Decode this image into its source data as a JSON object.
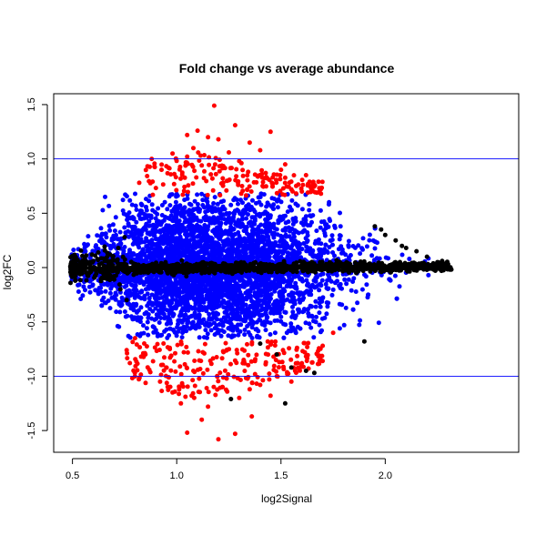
{
  "chart_data": {
    "type": "scatter",
    "title": "Fold change vs average abundance",
    "xlabel": "log2Signal",
    "ylabel": "log2FC",
    "xlim": [
      0.41,
      2.64
    ],
    "ylim": [
      -1.7,
      1.6
    ],
    "xticks": [
      "0.5",
      "1.0",
      "1.5",
      "2.0"
    ],
    "xtick_values": [
      0.5,
      1.0,
      1.5,
      2.0
    ],
    "yticks": [
      "-1.5",
      "-1.0",
      "-0.5",
      "0.0",
      "0.5",
      "1.0",
      "1.5"
    ],
    "ytick_values": [
      -1.5,
      -1.0,
      -0.5,
      0.0,
      0.5,
      1.0,
      1.5
    ],
    "hlines": [
      1.0,
      -1.0
    ],
    "hline_color": "#0000ff",
    "colors": {
      "upper": "#ff0000",
      "lower": "#ff0000",
      "mid": "#0000ff",
      "core": "#000000"
    },
    "grid": false,
    "series_points": {
      "core": [
        [
          0.49,
          0.01
        ],
        [
          0.52,
          0.03
        ],
        [
          0.55,
          -0.02
        ],
        [
          0.58,
          0.05
        ],
        [
          0.62,
          0.08
        ],
        [
          0.65,
          -0.06
        ],
        [
          0.68,
          0.12
        ],
        [
          0.7,
          -0.11
        ],
        [
          0.72,
          0.18
        ],
        [
          0.73,
          -0.2
        ],
        [
          0.75,
          0.28
        ],
        [
          0.76,
          -0.3
        ],
        [
          0.8,
          0.02
        ],
        [
          0.9,
          -0.01
        ],
        [
          1.0,
          0.0
        ],
        [
          1.1,
          0.01
        ],
        [
          1.2,
          -0.02
        ],
        [
          1.3,
          0.01
        ],
        [
          1.4,
          0.0
        ],
        [
          1.5,
          -0.01
        ],
        [
          1.6,
          0.01
        ],
        [
          1.7,
          0.02
        ],
        [
          1.8,
          -0.01
        ],
        [
          1.9,
          0.0
        ],
        [
          1.95,
          0.38
        ],
        [
          1.98,
          0.35
        ],
        [
          2.0,
          0.3
        ],
        [
          2.05,
          0.25
        ],
        [
          2.08,
          0.2
        ],
        [
          2.1,
          0.18
        ],
        [
          2.15,
          0.15
        ],
        [
          2.2,
          0.1
        ],
        [
          2.25,
          0.05
        ],
        [
          2.28,
          0.02
        ],
        [
          2.3,
          0.01
        ],
        [
          2.27,
          -0.03
        ],
        [
          1.4,
          -0.7
        ],
        [
          1.48,
          -0.8
        ],
        [
          1.55,
          -0.92
        ],
        [
          1.62,
          -0.95
        ],
        [
          1.66,
          -0.97
        ],
        [
          1.9,
          -0.68
        ],
        [
          1.26,
          -1.21
        ],
        [
          1.52,
          -1.25
        ],
        [
          0.56,
          0.02
        ],
        [
          0.6,
          0.06
        ]
      ],
      "upper": [
        [
          1.05,
          1.22
        ],
        [
          1.1,
          1.26
        ],
        [
          1.15,
          1.2
        ],
        [
          1.2,
          1.18
        ],
        [
          1.28,
          1.31
        ],
        [
          1.18,
          1.49
        ],
        [
          1.45,
          1.25
        ],
        [
          0.98,
          1.05
        ],
        [
          0.88,
          1.0
        ],
        [
          1.35,
          1.15
        ],
        [
          1.52,
          0.95
        ],
        [
          1.62,
          0.85
        ],
        [
          1.68,
          0.79
        ],
        [
          1.64,
          0.75
        ],
        [
          1.55,
          0.72
        ],
        [
          1.5,
          0.9
        ],
        [
          1.4,
          1.08
        ],
        [
          0.82,
          0.78
        ],
        [
          1.25,
          1.06
        ],
        [
          1.08,
          1.1
        ],
        [
          0.96,
          0.92
        ],
        [
          1.6,
          0.7
        ],
        [
          1.3,
          0.98
        ],
        [
          1.12,
          0.94
        ]
      ],
      "lower": [
        [
          1.05,
          -1.52
        ],
        [
          1.2,
          -1.58
        ],
        [
          1.28,
          -1.53
        ],
        [
          1.12,
          -1.4
        ],
        [
          1.36,
          -1.37
        ],
        [
          1.45,
          -1.18
        ],
        [
          0.85,
          -0.8
        ],
        [
          0.76,
          -0.76
        ],
        [
          0.98,
          -1.15
        ],
        [
          1.02,
          -1.25
        ],
        [
          1.3,
          -1.2
        ],
        [
          1.55,
          -1.05
        ],
        [
          1.6,
          -0.88
        ],
        [
          1.7,
          -0.72
        ],
        [
          1.75,
          -0.6
        ],
        [
          1.4,
          -1.08
        ],
        [
          0.92,
          -1.05
        ],
        [
          1.15,
          -1.28
        ],
        [
          1.22,
          -1.1
        ],
        [
          0.95,
          -0.92
        ],
        [
          1.48,
          -1.0
        ],
        [
          1.35,
          -1.12
        ],
        [
          1.08,
          -0.95
        ],
        [
          0.8,
          -0.65
        ]
      ]
    }
  }
}
